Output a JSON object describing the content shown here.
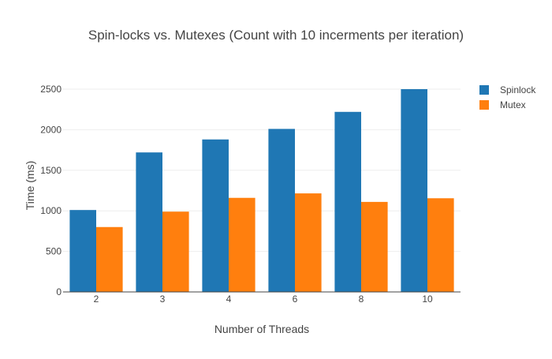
{
  "chart_data": {
    "type": "bar",
    "title": "Spin-locks vs. Mutexes (Count with 10 incerments per iteration)",
    "xlabel": "Number of Threads",
    "ylabel": "Time (ms)",
    "categories": [
      "2",
      "3",
      "4",
      "6",
      "8",
      "10"
    ],
    "series": [
      {
        "name": "Spinlock",
        "color": "#1f77b4",
        "values": [
          1010,
          1720,
          1880,
          2010,
          2220,
          2500
        ]
      },
      {
        "name": "Mutex",
        "color": "#ff7f0e",
        "values": [
          800,
          990,
          1160,
          1215,
          1110,
          1155
        ]
      }
    ],
    "ylim": [
      0,
      2500
    ],
    "yticks": [
      0,
      500,
      1000,
      1500,
      2000,
      2500
    ],
    "grid": true,
    "legend": "top-right"
  }
}
